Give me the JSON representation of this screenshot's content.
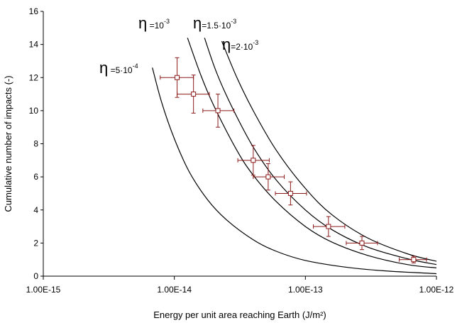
{
  "chart_data": {
    "type": "scatter",
    "x_scale": "log",
    "xlabel": "Energy per unit area reaching Earth (J/m²)",
    "ylabel": "Cumulative number of impacts (-)",
    "xlim": [
      1e-15,
      1e-12
    ],
    "ylim": [
      0,
      16
    ],
    "x_tick_labels": [
      "1.00E-15",
      "1.00E-14",
      "1.00E-13",
      "1.00E-12"
    ],
    "y_tick_labels": [
      "0",
      "2",
      "4",
      "6",
      "8",
      "10",
      "12",
      "14",
      "16"
    ],
    "grid": false,
    "colors": {
      "curves": "#000000",
      "data": "#8b1a1a"
    },
    "observations": [
      {
        "x": 1.05e-14,
        "y": 12,
        "x_low": 7.8e-15,
        "x_high": 1.4e-14,
        "y_err": 1.2
      },
      {
        "x": 1.4e-14,
        "y": 11,
        "x_low": 1.05e-14,
        "x_high": 1.85e-14,
        "y_err": 1.15
      },
      {
        "x": 2.15e-14,
        "y": 10,
        "x_low": 1.65e-14,
        "x_high": 2.85e-14,
        "y_err": 1.0
      },
      {
        "x": 4e-14,
        "y": 7,
        "x_low": 3.05e-14,
        "x_high": 5.3e-14,
        "y_err": 0.9
      },
      {
        "x": 5.2e-14,
        "y": 6,
        "x_low": 4e-14,
        "x_high": 6.9e-14,
        "y_err": 0.8
      },
      {
        "x": 7.7e-14,
        "y": 5,
        "x_low": 5.9e-14,
        "x_high": 1.02e-13,
        "y_err": 0.7
      },
      {
        "x": 1.5e-13,
        "y": 3,
        "x_low": 1.15e-13,
        "x_high": 2e-13,
        "y_err": 0.6
      },
      {
        "x": 2.7e-13,
        "y": 2,
        "x_low": 2.05e-13,
        "x_high": 3.55e-13,
        "y_err": 0.4
      },
      {
        "x": 6.7e-13,
        "y": 1,
        "x_low": 5.2e-13,
        "x_high": 8.4e-13,
        "y_err": 0.2
      }
    ],
    "curves": [
      {
        "name": "η=5·10⁻⁴",
        "label_base": "η",
        "label_mid": " =5·10",
        "label_exp": "-4",
        "points": [
          [
            6.8e-15,
            12.6
          ],
          [
            8e-15,
            10.5
          ],
          [
            1e-14,
            8.3
          ],
          [
            1.3e-14,
            6.3
          ],
          [
            1.8e-14,
            4.6
          ],
          [
            2.5e-14,
            3.4
          ],
          [
            4e-14,
            2.2
          ],
          [
            6e-14,
            1.5
          ],
          [
            1e-13,
            0.95
          ],
          [
            2e-13,
            0.55
          ],
          [
            4e-13,
            0.32
          ],
          [
            1e-12,
            0.15
          ]
        ]
      },
      {
        "name": "η=10⁻³",
        "label_base": "η",
        "label_mid": " =10",
        "label_exp": "-3",
        "points": [
          [
            1.26e-14,
            14.4
          ],
          [
            1.6e-14,
            12.1
          ],
          [
            2e-14,
            10.3
          ],
          [
            3e-14,
            7.6
          ],
          [
            4e-14,
            6.1
          ],
          [
            6e-14,
            4.5
          ],
          [
            1e-13,
            3.0
          ],
          [
            1.6e-13,
            2.05
          ],
          [
            3e-13,
            1.25
          ],
          [
            6e-13,
            0.7
          ],
          [
            1e-12,
            0.5
          ]
        ]
      },
      {
        "name": "η=1.5·10⁻³",
        "label_base": "η",
        "label_mid": "=1.5·10",
        "label_exp": "-3",
        "points": [
          [
            1.7e-14,
            14.4
          ],
          [
            2.1e-14,
            12.3
          ],
          [
            2.8e-14,
            10.1
          ],
          [
            4e-14,
            7.8
          ],
          [
            6e-14,
            5.8
          ],
          [
            1e-13,
            4.0
          ],
          [
            1.6e-13,
            2.8
          ],
          [
            3e-13,
            1.75
          ],
          [
            6e-13,
            1.05
          ],
          [
            1e-12,
            0.7
          ]
        ]
      },
      {
        "name": "η=2·10⁻³",
        "label_base": "η",
        "label_mid": "=2·10",
        "label_exp": "-3",
        "points": [
          [
            2.3e-14,
            14.2
          ],
          [
            3e-14,
            12.0
          ],
          [
            4e-14,
            10.0
          ],
          [
            6e-14,
            7.6
          ],
          [
            1e-13,
            5.3
          ],
          [
            1.6e-13,
            3.7
          ],
          [
            3e-13,
            2.3
          ],
          [
            6e-13,
            1.35
          ],
          [
            1e-12,
            0.9
          ]
        ]
      }
    ]
  }
}
